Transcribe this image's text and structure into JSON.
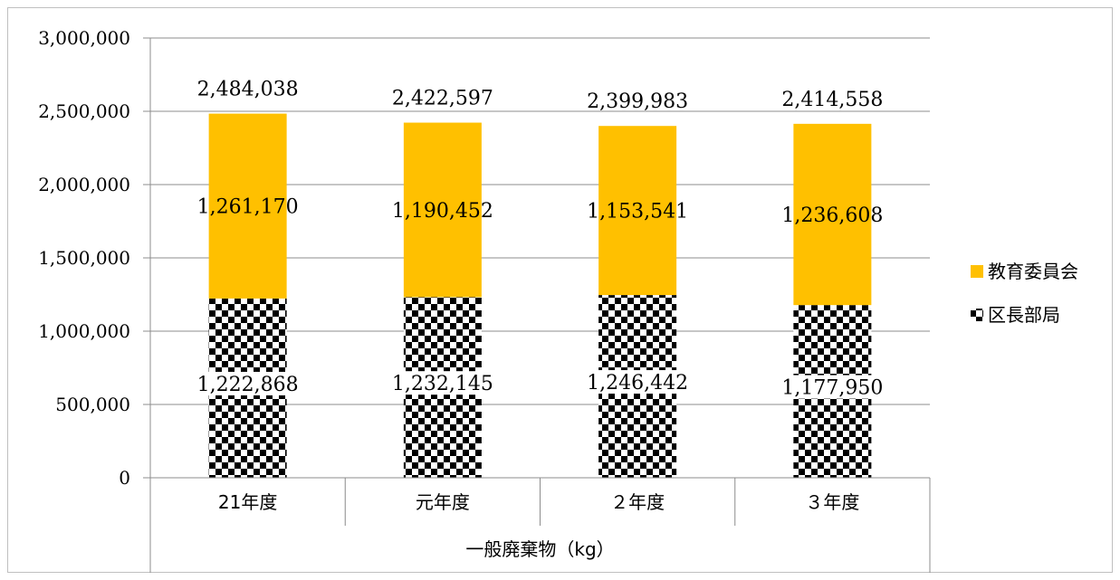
{
  "chart_data": {
    "type": "bar",
    "stacked": true,
    "categories": [
      "21年度",
      "元年度",
      "２年度",
      "３年度"
    ],
    "group_label": "一般廃棄物（kg）",
    "series": [
      {
        "name": "区長部局",
        "values": [
          1222868,
          1232145,
          1246442,
          1177950
        ],
        "pattern": "checkerboard"
      },
      {
        "name": "教育委員会",
        "values": [
          1261170,
          1190452,
          1153541,
          1236608
        ],
        "color": "#FFC000"
      }
    ],
    "totals": [
      2484038,
      2422597,
      2399983,
      2414558
    ],
    "series_labels": [
      [
        "1,222,868",
        "1,232,145",
        "1,246,442",
        "1,177,950"
      ],
      [
        "1,261,170",
        "1,190,452",
        "1,153,541",
        "1,236,608"
      ]
    ],
    "total_labels": [
      "2,484,038",
      "2,422,597",
      "2,399,983",
      "2,414,558"
    ],
    "ylim": [
      0,
      3000000
    ],
    "yticks": [
      0,
      500000,
      1000000,
      1500000,
      2000000,
      2500000,
      3000000
    ],
    "ytick_labels": [
      "0",
      "500,000",
      "1,000,000",
      "1,500,000",
      "2,000,000",
      "2,500,000",
      "3,000,000"
    ],
    "grid": true,
    "legend": "right",
    "legend_order": [
      "教育委員会",
      "区長部局"
    ]
  }
}
